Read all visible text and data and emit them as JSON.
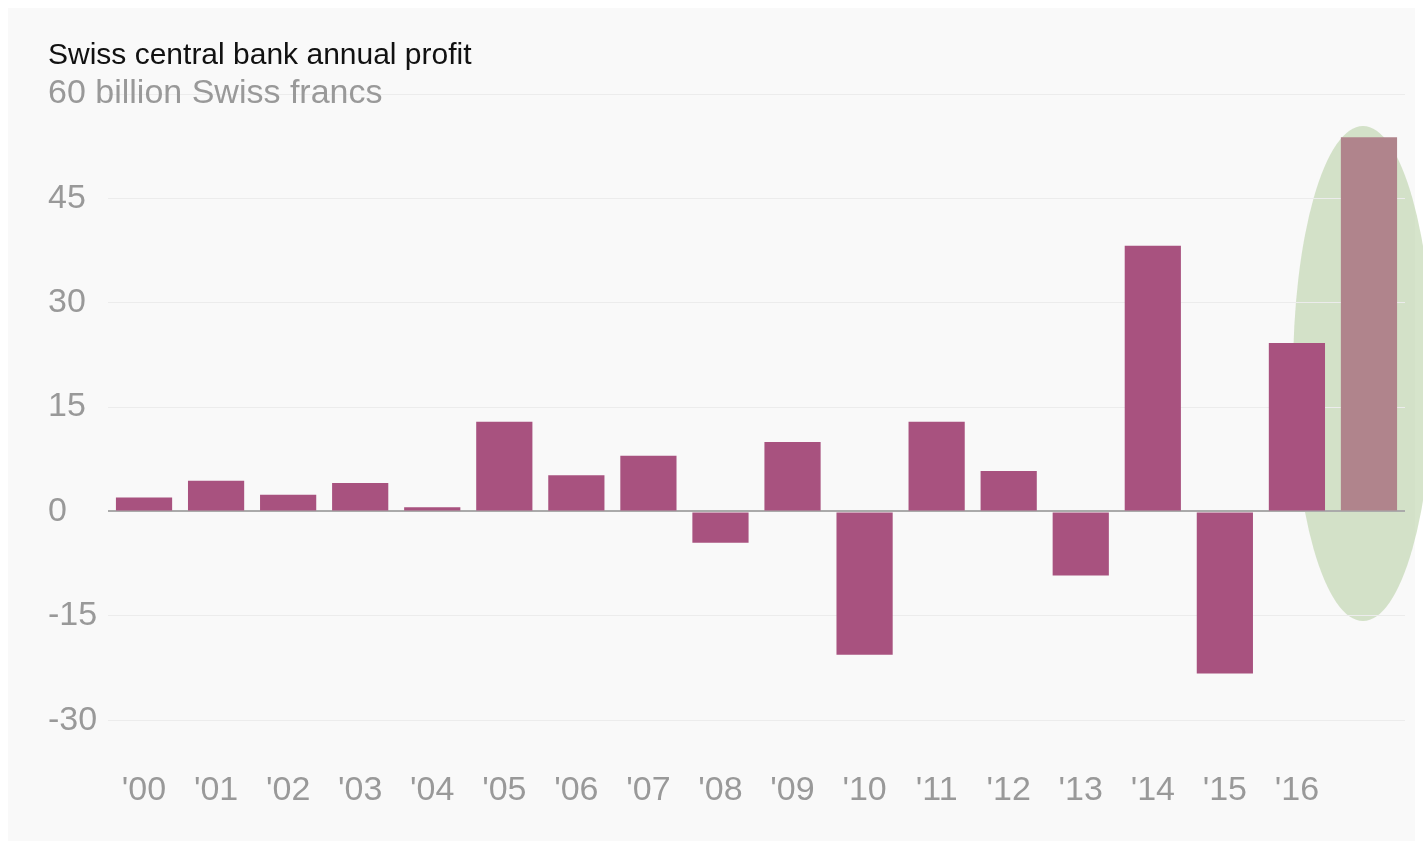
{
  "chart_data": {
    "type": "bar",
    "title": "Swiss central bank annual profit",
    "categories": [
      "'00",
      "'01",
      "'02",
      "'03",
      "'04",
      "'05",
      "'06",
      "'07",
      "'08",
      "'09",
      "'10",
      "'11",
      "'12",
      "'13",
      "'14",
      "'15",
      "'16",
      null
    ],
    "values": [
      2.0,
      4.4,
      2.4,
      4.1,
      0.6,
      12.9,
      5.2,
      8.0,
      -4.5,
      10.0,
      -20.6,
      12.9,
      5.8,
      -9.2,
      38.2,
      -23.3,
      24.2,
      53.8
    ],
    "colors": [
      "#a8527f",
      "#a8527f",
      "#a8527f",
      "#a8527f",
      "#a8527f",
      "#a8527f",
      "#a8527f",
      "#a8527f",
      "#a8527f",
      "#a8527f",
      "#a8527f",
      "#a8527f",
      "#a8527f",
      "#a8527f",
      "#a8527f",
      "#a8527f",
      "#a8527f",
      "#b0848c"
    ],
    "ylim": [
      -30,
      60
    ],
    "yticks": [
      -30,
      -15,
      0,
      15,
      30,
      45,
      {
        "value": 60,
        "label": "60 billion Swiss francs"
      }
    ],
    "grid": "y"
  }
}
